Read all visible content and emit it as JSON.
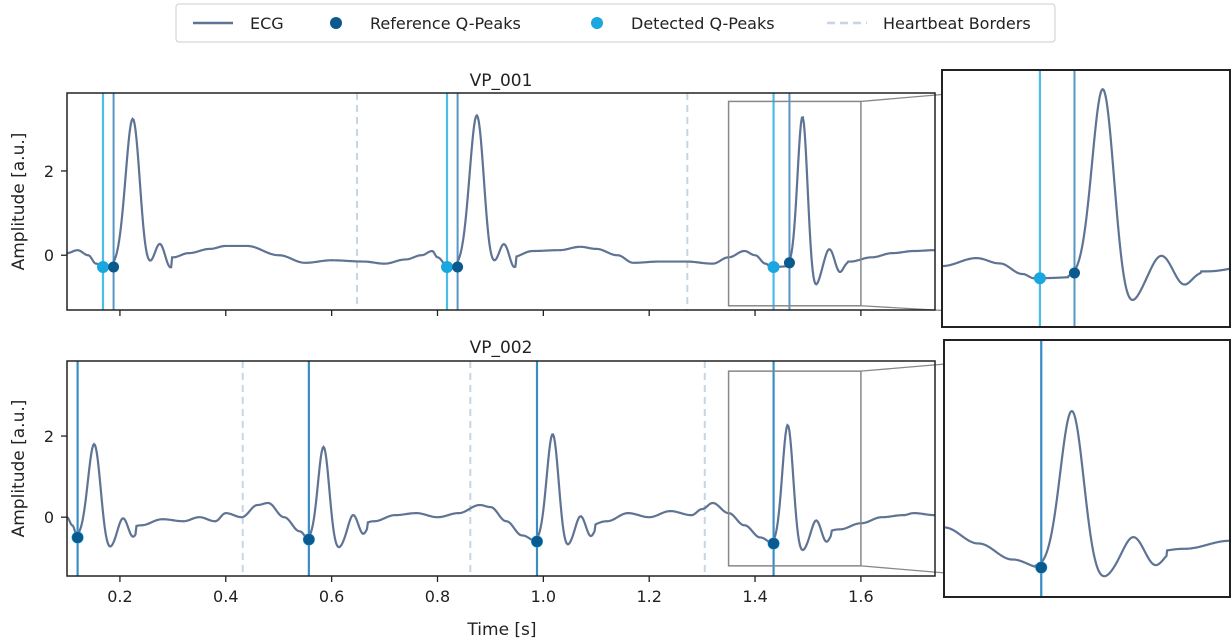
{
  "chart_data": {
    "type": "line",
    "legend": {
      "placement": "top-center",
      "entries": [
        {
          "key": "ecg",
          "label": "ECG",
          "marker": "line",
          "color": "#5f7395"
        },
        {
          "key": "ref",
          "label": "Reference Q-Peaks",
          "marker": "dot",
          "color": "#0a5a8f"
        },
        {
          "key": "det",
          "label": "Detected Q-Peaks",
          "marker": "dot",
          "color": "#1aa6df"
        },
        {
          "key": "borders",
          "label": "Heartbeat Borders",
          "marker": "dashed-line",
          "color": "#c5d5e2"
        }
      ]
    },
    "colors": {
      "ecg": "#5f7395",
      "ref": "#0a5a8f",
      "ref_line": "#3a84bd",
      "det": "#1aa6df",
      "det_line": "#4cbde9",
      "borders": "#c5d5e2",
      "inset_box": "#888888",
      "frame": "#222222"
    },
    "xlabel": "Time [s]",
    "xlim": [
      0.1,
      1.74
    ],
    "xticks": [
      0.2,
      0.4,
      0.6,
      0.8,
      1.0,
      1.2,
      1.4,
      1.6
    ],
    "xtick_labels": [
      "0.2",
      "0.4",
      "0.6",
      "0.8",
      "1.0",
      "1.2",
      "1.4",
      "1.6"
    ],
    "panels": [
      {
        "title": "VP_001",
        "ylabel": "Amplitude [a.u.]",
        "ylim": [
          -1.3,
          3.85
        ],
        "yticks": [
          0,
          2
        ],
        "ytick_labels": [
          "0",
          "2"
        ],
        "show_xtick_labels": false,
        "grid": false,
        "baseline": [
          [
            0.1,
            0.05
          ],
          [
            0.12,
            0.12
          ],
          [
            0.14,
            0.0
          ],
          [
            0.155,
            -0.2
          ],
          [
            0.168,
            -0.28
          ],
          [
            0.3,
            -0.05
          ],
          [
            0.33,
            0.05
          ],
          [
            0.37,
            0.15
          ],
          [
            0.4,
            0.22
          ],
          [
            0.44,
            0.22
          ],
          [
            0.5,
            0.0
          ],
          [
            0.55,
            -0.18
          ],
          [
            0.6,
            -0.12
          ],
          [
            0.66,
            -0.15
          ],
          [
            0.7,
            -0.2
          ],
          [
            0.74,
            -0.1
          ],
          [
            0.77,
            0.0
          ],
          [
            0.79,
            0.1
          ],
          [
            0.8,
            -0.05
          ],
          [
            0.82,
            -0.28
          ],
          [
            0.91,
            -0.1
          ],
          [
            0.94,
            -0.05
          ],
          [
            0.98,
            0.1
          ],
          [
            1.03,
            0.12
          ],
          [
            1.07,
            0.2
          ],
          [
            1.1,
            0.15
          ],
          [
            1.14,
            0.0
          ],
          [
            1.17,
            -0.18
          ],
          [
            1.22,
            -0.15
          ],
          [
            1.27,
            -0.15
          ],
          [
            1.32,
            -0.2
          ],
          [
            1.35,
            -0.05
          ],
          [
            1.38,
            0.1
          ],
          [
            1.4,
            0.0
          ],
          [
            1.42,
            -0.2
          ],
          [
            1.43,
            -0.28
          ],
          [
            1.52,
            -0.2
          ],
          [
            1.58,
            -0.15
          ],
          [
            1.62,
            -0.05
          ],
          [
            1.66,
            0.05
          ],
          [
            1.7,
            0.1
          ],
          [
            1.74,
            0.12
          ]
        ],
        "beats": [
          {
            "q": 0.188,
            "q_amp": -0.28,
            "r": 0.225,
            "r_amp": 3.25,
            "s": 0.245,
            "s_amp": -0.85
          },
          {
            "q": 0.838,
            "q_amp": -0.28,
            "r": 0.875,
            "r_amp": 3.3,
            "s": 0.895,
            "s_amp": -0.85
          },
          {
            "q": 1.465,
            "q_amp": -0.18,
            "r": 1.49,
            "r_amp": 3.45,
            "s": 1.51,
            "s_amp": -0.85
          }
        ],
        "reference_peaks": [
          {
            "x": 0.188,
            "y": -0.28
          },
          {
            "x": 0.838,
            "y": -0.28
          },
          {
            "x": 1.465,
            "y": -0.18
          }
        ],
        "detected_peaks": [
          {
            "x": 0.168,
            "y": -0.28
          },
          {
            "x": 0.818,
            "y": -0.28
          },
          {
            "x": 1.435,
            "y": -0.28
          }
        ],
        "heartbeat_borders": [
          0.648,
          1.272
        ],
        "zoom": {
          "xlim": [
            1.35,
            1.6
          ],
          "ylim": [
            -1.2,
            3.65
          ]
        }
      },
      {
        "title": "VP_002",
        "ylabel": "Amplitude [a.u.]",
        "ylim": [
          -1.45,
          3.85
        ],
        "yticks": [
          0,
          2
        ],
        "ytick_labels": [
          "0",
          "2"
        ],
        "show_xtick_labels": true,
        "grid": false,
        "baseline": [
          [
            0.1,
            0.0
          ],
          [
            0.11,
            -0.2
          ],
          [
            0.12,
            -0.5
          ],
          [
            0.2,
            -0.35
          ],
          [
            0.24,
            -0.2
          ],
          [
            0.28,
            -0.05
          ],
          [
            0.32,
            -0.1
          ],
          [
            0.35,
            0.0
          ],
          [
            0.38,
            -0.1
          ],
          [
            0.4,
            0.1
          ],
          [
            0.43,
            0.0
          ],
          [
            0.46,
            0.3
          ],
          [
            0.48,
            0.35
          ],
          [
            0.51,
            0.0
          ],
          [
            0.54,
            -0.35
          ],
          [
            0.557,
            -0.55
          ],
          [
            0.64,
            -0.25
          ],
          [
            0.68,
            -0.1
          ],
          [
            0.72,
            0.05
          ],
          [
            0.76,
            0.1
          ],
          [
            0.8,
            0.0
          ],
          [
            0.84,
            0.1
          ],
          [
            0.88,
            0.3
          ],
          [
            0.9,
            0.25
          ],
          [
            0.93,
            -0.1
          ],
          [
            0.96,
            -0.45
          ],
          [
            0.988,
            -0.6
          ],
          [
            1.07,
            -0.3
          ],
          [
            1.12,
            -0.1
          ],
          [
            1.16,
            0.1
          ],
          [
            1.2,
            0.0
          ],
          [
            1.24,
            0.15
          ],
          [
            1.28,
            0.05
          ],
          [
            1.3,
            0.2
          ],
          [
            1.32,
            0.35
          ],
          [
            1.35,
            0.1
          ],
          [
            1.38,
            -0.2
          ],
          [
            1.41,
            -0.5
          ],
          [
            1.435,
            -0.65
          ],
          [
            1.52,
            -0.4
          ],
          [
            1.56,
            -0.3
          ],
          [
            1.6,
            -0.15
          ],
          [
            1.64,
            0.0
          ],
          [
            1.68,
            0.05
          ],
          [
            1.7,
            0.1
          ],
          [
            1.74,
            0.05
          ]
        ],
        "beats": [
          {
            "q": 0.12,
            "q_amp": -0.5,
            "r": 0.152,
            "r_amp": 1.85,
            "s": 0.175,
            "s_amp": -1.05
          },
          {
            "q": 0.557,
            "q_amp": -0.55,
            "r": 0.585,
            "r_amp": 1.75,
            "s": 0.61,
            "s_amp": -1.05
          },
          {
            "q": 0.988,
            "q_amp": -0.6,
            "r": 1.018,
            "r_amp": 2.05,
            "s": 1.04,
            "s_amp": -1.1
          },
          {
            "q": 1.435,
            "q_amp": -0.65,
            "r": 1.462,
            "r_amp": 2.3,
            "s": 1.485,
            "s_amp": -1.1
          }
        ],
        "reference_peaks": [
          {
            "x": 0.12,
            "y": -0.5
          },
          {
            "x": 0.557,
            "y": -0.55
          },
          {
            "x": 0.988,
            "y": -0.6
          },
          {
            "x": 1.435,
            "y": -0.65
          }
        ],
        "detected_peaks": [
          {
            "x": 0.12,
            "y": -0.5
          },
          {
            "x": 0.557,
            "y": -0.55
          },
          {
            "x": 0.988,
            "y": -0.6
          },
          {
            "x": 1.435,
            "y": -0.65
          }
        ],
        "heartbeat_borders": [
          0.432,
          0.862,
          1.305
        ],
        "zoom": {
          "xlim": [
            1.35,
            1.6
          ],
          "ylim": [
            -1.2,
            3.6
          ]
        }
      }
    ]
  }
}
